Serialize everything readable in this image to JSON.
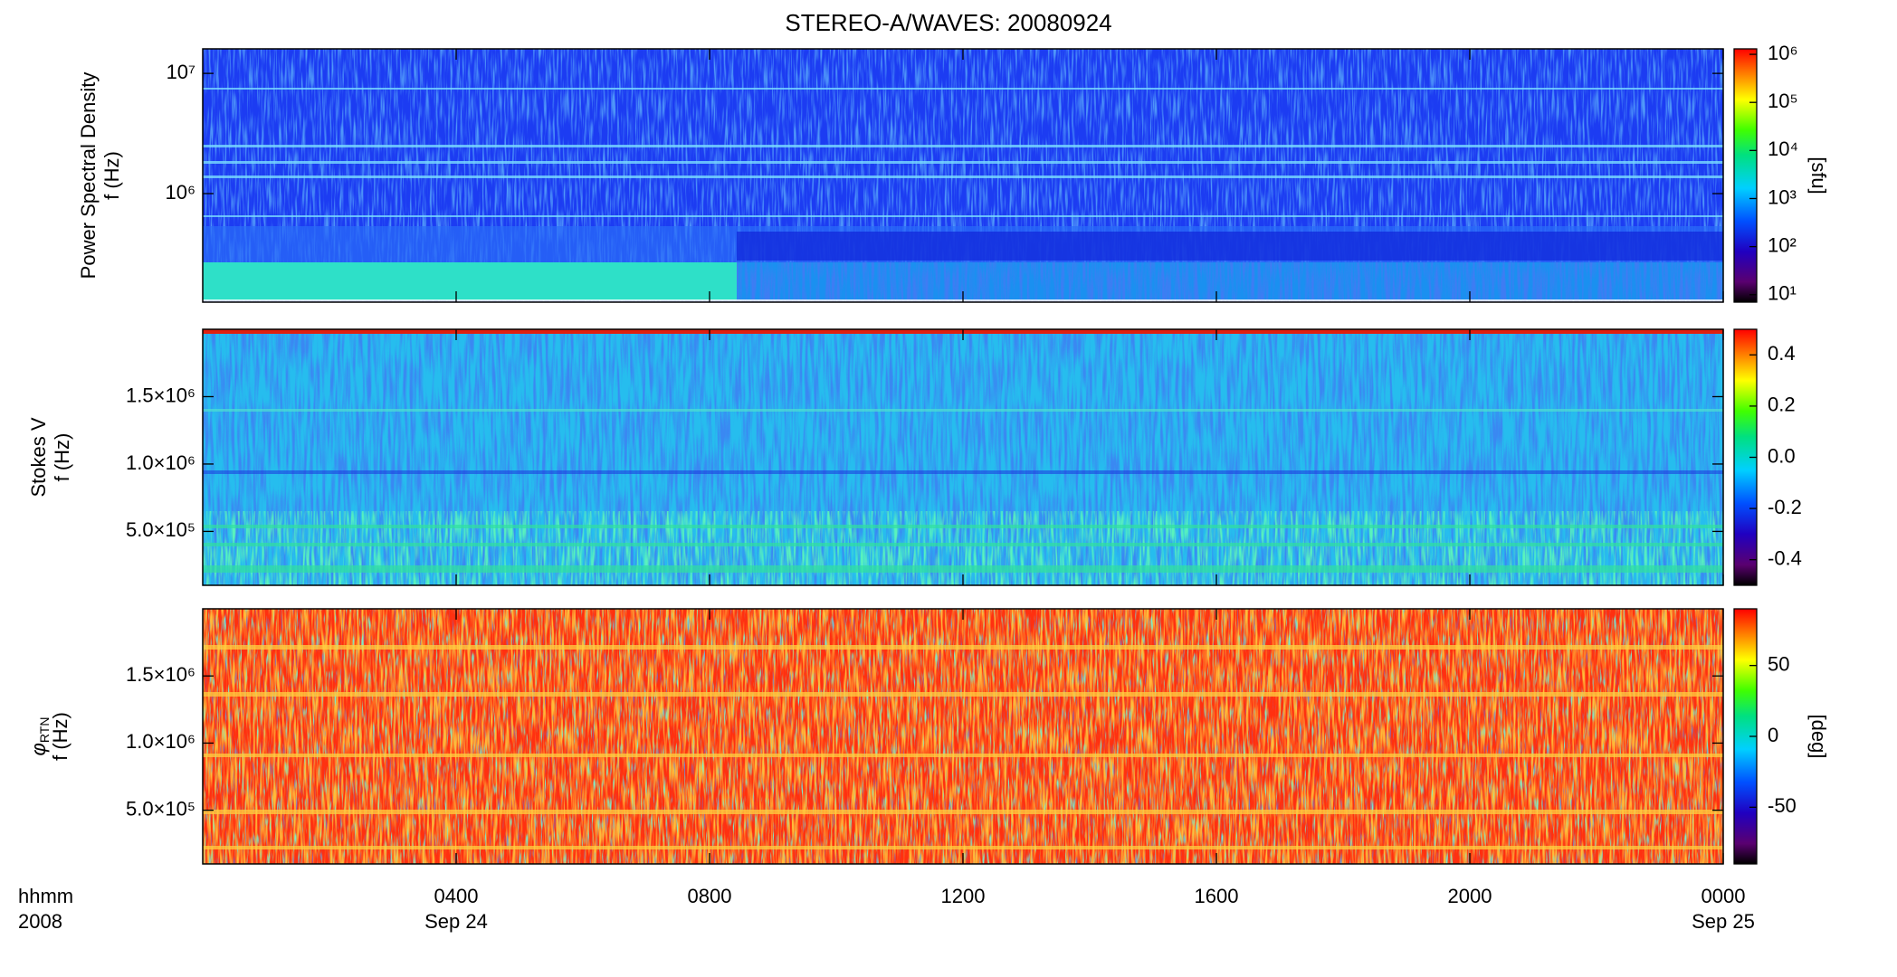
{
  "title": "STEREO-A/WAVES: 20080924",
  "chart_data": [
    {
      "type": "heatmap",
      "ylabel": [
        "Power Spectral Density",
        "f (Hz)"
      ],
      "ylog": true,
      "ylim": [
        125000,
        16000000
      ],
      "yticks": [
        {
          "value": 1000000,
          "label": "10⁶"
        },
        {
          "value": 10000000,
          "label": "10⁷"
        }
      ],
      "colorbar": {
        "log": true,
        "lim": [
          7,
          1300000
        ],
        "ticks": [
          {
            "value": 10,
            "label": "10¹"
          },
          {
            "value": 100,
            "label": "10²"
          },
          {
            "value": 1000,
            "label": "10³"
          },
          {
            "value": 10000,
            "label": "10⁴"
          },
          {
            "value": 100000,
            "label": "10⁵"
          },
          {
            "value": 1000000,
            "label": "10⁶"
          }
        ],
        "label": "[sfu]"
      }
    },
    {
      "type": "heatmap",
      "ylabel": [
        "Stokes V",
        "f (Hz)"
      ],
      "ylog": false,
      "ylim": [
        100000,
        2000000
      ],
      "yticks": [
        {
          "value": 500000,
          "label": "5.0×10⁵"
        },
        {
          "value": 1000000,
          "label": "1.0×10⁶"
        },
        {
          "value": 1500000,
          "label": "1.5×10⁶"
        }
      ],
      "colorbar": {
        "log": false,
        "lim": [
          -0.5,
          0.5
        ],
        "ticks": [
          -0.4,
          -0.2,
          {
            "value": 0,
            "label": "0.0"
          },
          0.2,
          0.4
        ]
      }
    },
    {
      "type": "heatmap",
      "ylabel": [
        {
          "symbol": "φ",
          "subscript": "RTN"
        },
        "f (Hz)"
      ],
      "ylog": false,
      "ylim": [
        100000,
        2000000
      ],
      "yticks": [
        {
          "value": 500000,
          "label": "5.0×10⁵"
        },
        {
          "value": 1000000,
          "label": "1.0×10⁶"
        },
        {
          "value": 1500000,
          "label": "1.5×10⁶"
        }
      ],
      "colorbar": {
        "log": false,
        "lim": [
          -90,
          90
        ],
        "ticks": [
          -50,
          0,
          50
        ],
        "label": "[deg]"
      },
      "xlim": [
        0,
        24
      ],
      "xticks": [
        {
          "value": 4,
          "label": "0400"
        },
        {
          "value": 8,
          "label": "0800"
        },
        {
          "value": 12,
          "label": "1200"
        },
        {
          "value": 16,
          "label": "1600"
        },
        {
          "value": 20,
          "label": "2000"
        },
        {
          "value": 24,
          "label": "0000"
        }
      ],
      "date_ticks": [
        {
          "value": 4,
          "label": "Sep 24"
        },
        {
          "value": 24,
          "label": "Sep 25"
        }
      ],
      "corner_label": [
        "hhmm",
        "2008"
      ]
    }
  ]
}
